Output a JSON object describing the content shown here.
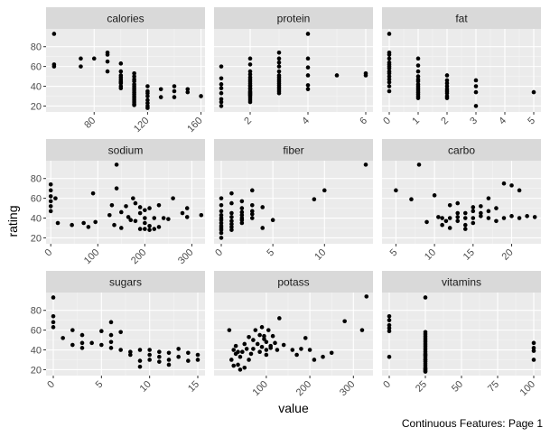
{
  "colors": {
    "panel_background": "#ebebeb",
    "strip_background": "#d9d9d9",
    "grid_major": "#ffffff",
    "grid_minor": "#f5f5f5",
    "point": "#000000"
  },
  "chart_data": {
    "type": "scatter",
    "facet_layout": "3x3 grid",
    "xlabel": "value",
    "ylabel": "rating",
    "caption": "Continuous Features: Page 1",
    "shared_y": {
      "ylim": [
        14,
        98
      ],
      "ticks": [
        20,
        40,
        60,
        80
      ]
    },
    "panels": [
      {
        "name": "calories",
        "xlim": [
          44,
          163
        ],
        "xticks": [
          80,
          120,
          160
        ],
        "yticks": [
          20,
          40,
          60,
          80
        ],
        "x": [
          50,
          50,
          50,
          70,
          70,
          80,
          90,
          90,
          90,
          90,
          100,
          100,
          100,
          100,
          100,
          100,
          100,
          100,
          100,
          100,
          110,
          110,
          110,
          110,
          110,
          110,
          110,
          110,
          110,
          110,
          110,
          110,
          110,
          110,
          110,
          110,
          120,
          120,
          120,
          120,
          120,
          120,
          120,
          120,
          130,
          130,
          140,
          140,
          140,
          150,
          150,
          160
        ],
        "y": [
          93,
          62,
          60,
          68,
          60,
          68,
          74,
          72,
          65,
          55,
          63,
          55,
          51,
          49,
          47,
          45,
          44,
          43,
          40,
          38,
          53,
          50,
          47,
          45,
          42,
          40,
          38,
          36,
          34,
          32,
          30,
          28,
          26,
          24,
          22,
          21,
          40,
          35,
          33,
          30,
          26,
          23,
          20,
          18,
          37,
          29,
          40,
          35,
          29,
          37,
          34,
          30
        ]
      },
      {
        "name": "protein",
        "xlim": [
          0.75,
          6.25
        ],
        "xticks": [
          2,
          4,
          6
        ],
        "yticks": [],
        "x": [
          1,
          1,
          1,
          1,
          1,
          1,
          1,
          1,
          2,
          2,
          2,
          2,
          2,
          2,
          2,
          2,
          2,
          2,
          2,
          2,
          2,
          2,
          2,
          2,
          2,
          2,
          2,
          2,
          2,
          3,
          3,
          3,
          3,
          3,
          3,
          3,
          3,
          3,
          3,
          3,
          3,
          3,
          3,
          3,
          4,
          4,
          4,
          4,
          4,
          4,
          5,
          6,
          6
        ],
        "y": [
          60,
          48,
          42,
          38,
          33,
          27,
          24,
          20,
          68,
          62,
          55,
          52,
          49,
          47,
          45,
          43,
          41,
          40,
          38,
          37,
          35,
          34,
          33,
          32,
          31,
          30,
          28,
          26,
          24,
          74,
          68,
          64,
          60,
          55,
          51,
          49,
          47,
          45,
          43,
          41,
          39,
          37,
          35,
          33,
          93,
          68,
          59,
          51,
          41,
          37,
          51,
          53,
          51
        ]
      },
      {
        "name": "fat",
        "xlim": [
          -0.25,
          5.25
        ],
        "xticks": [
          0,
          1,
          2,
          3,
          4,
          5
        ],
        "yticks": [],
        "x": [
          0,
          0,
          0,
          0,
          0,
          0,
          0,
          0,
          0,
          0,
          0,
          0,
          0,
          0,
          0,
          1,
          1,
          1,
          1,
          1,
          1,
          1,
          1,
          1,
          1,
          1,
          1,
          1,
          1,
          2,
          2,
          2,
          2,
          2,
          2,
          2,
          2,
          2,
          3,
          3,
          3,
          3,
          5
        ],
        "y": [
          93,
          74,
          72,
          68,
          64,
          62,
          60,
          58,
          55,
          53,
          50,
          47,
          44,
          40,
          35,
          68,
          61,
          55,
          50,
          47,
          45,
          42,
          40,
          38,
          36,
          34,
          32,
          30,
          28,
          51,
          46,
          43,
          40,
          37,
          35,
          33,
          30,
          28,
          46,
          40,
          34,
          20,
          34
        ]
      },
      {
        "name": "sodium",
        "xlim": [
          -10,
          328
        ],
        "xticks": [
          0,
          100,
          200,
          300
        ],
        "yticks": [
          20,
          40,
          60,
          80
        ],
        "x": [
          0,
          0,
          0,
          0,
          0,
          0,
          10,
          15,
          45,
          70,
          80,
          90,
          95,
          125,
          130,
          135,
          140,
          140,
          150,
          150,
          160,
          165,
          170,
          175,
          180,
          180,
          190,
          190,
          190,
          200,
          200,
          200,
          200,
          210,
          210,
          210,
          220,
          220,
          230,
          230,
          240,
          250,
          260,
          280,
          290,
          290,
          320
        ],
        "y": [
          74,
          68,
          62,
          57,
          52,
          47,
          60,
          35,
          33,
          35,
          31,
          65,
          36,
          43,
          53,
          33,
          70,
          94,
          30,
          46,
          52,
          41,
          38,
          60,
          55,
          37,
          29,
          45,
          51,
          29,
          35,
          40,
          48,
          28,
          32,
          50,
          29,
          40,
          31,
          53,
          40,
          39,
          60,
          45,
          50,
          41,
          43
        ]
      },
      {
        "name": "fiber",
        "xlim": [
          -0.7,
          14.7
        ],
        "xticks": [
          0,
          5,
          10
        ],
        "yticks": [],
        "x": [
          0,
          0,
          0,
          0,
          0,
          0,
          0,
          0,
          0,
          0,
          0,
          0,
          1,
          1,
          1,
          1,
          1,
          1,
          1,
          1,
          2,
          2,
          2,
          2,
          2,
          2,
          2,
          3,
          3,
          3,
          3,
          3,
          4,
          4,
          5,
          9,
          10,
          14
        ],
        "y": [
          60,
          53,
          47,
          43,
          40,
          38,
          35,
          32,
          30,
          28,
          25,
          20,
          65,
          55,
          45,
          41,
          37,
          34,
          31,
          28,
          57,
          50,
          46,
          43,
          40,
          38,
          35,
          68,
          53,
          47,
          44,
          40,
          51,
          30,
          38,
          59,
          68,
          94
        ]
      },
      {
        "name": "carbo",
        "xlim": [
          3.2,
          23.8
        ],
        "xticks": [
          5,
          10,
          15,
          20
        ],
        "yticks": [],
        "x": [
          5,
          7,
          8,
          9,
          10,
          10.5,
          11,
          11,
          11.5,
          12,
          12,
          12,
          13,
          13,
          13,
          13,
          14,
          14,
          14,
          14,
          15,
          15,
          15,
          15,
          16,
          16,
          16,
          17,
          17,
          17,
          18,
          18,
          19,
          19,
          20,
          20,
          21,
          21,
          22,
          23
        ],
        "y": [
          68,
          59,
          94,
          36,
          63,
          41,
          40,
          33,
          37,
          53,
          40,
          30,
          45,
          41,
          37,
          55,
          45,
          40,
          33,
          29,
          51,
          47,
          40,
          35,
          52,
          45,
          42,
          60,
          47,
          40,
          50,
          37,
          75,
          40,
          73,
          42,
          68,
          40,
          42,
          41
        ]
      },
      {
        "name": "sugars",
        "xlim": [
          -0.75,
          15.75
        ],
        "xticks": [
          0,
          5,
          10,
          15
        ],
        "yticks": [
          20,
          40,
          60,
          80
        ],
        "x": [
          0,
          0,
          0,
          0,
          1,
          2,
          2,
          3,
          3,
          3,
          4,
          5,
          5,
          6,
          6,
          6,
          6,
          7,
          7,
          8,
          8,
          9,
          9,
          9,
          10,
          10,
          10,
          11,
          11,
          11,
          12,
          12,
          12,
          13,
          13,
          14,
          14,
          15,
          15
        ],
        "y": [
          93,
          74,
          68,
          63,
          52,
          60,
          45,
          55,
          47,
          42,
          47,
          45,
          59,
          68,
          55,
          48,
          42,
          58,
          40,
          35,
          38,
          40,
          29,
          23,
          40,
          35,
          30,
          38,
          33,
          28,
          37,
          30,
          25,
          41,
          33,
          37,
          29,
          35,
          30
        ]
      },
      {
        "name": "potass",
        "xlim": [
          -20,
          345
        ],
        "xticks": [
          100,
          200,
          300
        ],
        "yticks": [],
        "x": [
          15,
          20,
          25,
          25,
          30,
          30,
          35,
          35,
          40,
          40,
          45,
          50,
          50,
          55,
          60,
          60,
          65,
          70,
          70,
          75,
          80,
          85,
          85,
          90,
          90,
          95,
          95,
          100,
          100,
          100,
          105,
          110,
          110,
          115,
          120,
          125,
          130,
          140,
          160,
          170,
          180,
          190,
          200,
          210,
          230,
          250,
          280,
          320,
          330
        ],
        "y": [
          60,
          30,
          40,
          24,
          36,
          44,
          25,
          38,
          20,
          33,
          38,
          46,
          22,
          41,
          30,
          53,
          36,
          50,
          41,
          60,
          46,
          55,
          38,
          63,
          43,
          54,
          51,
          48,
          40,
          35,
          60,
          44,
          42,
          54,
          47,
          40,
          72,
          45,
          40,
          35,
          41,
          52,
          40,
          30,
          33,
          37,
          69,
          60,
          94
        ]
      },
      {
        "name": "vitamins",
        "xlim": [
          -5,
          105
        ],
        "xticks": [
          0,
          25,
          50,
          75,
          100
        ],
        "yticks": [],
        "x": [
          0,
          0,
          0,
          0,
          0,
          0,
          25,
          25,
          25,
          25,
          25,
          25,
          25,
          25,
          25,
          25,
          25,
          25,
          25,
          25,
          25,
          25,
          25,
          25,
          25,
          25,
          25,
          25,
          25,
          25,
          25,
          25,
          100,
          100,
          100,
          100
        ],
        "y": [
          74,
          70,
          65,
          62,
          59,
          33,
          93,
          58,
          56,
          54,
          52,
          50,
          48,
          46,
          44,
          42,
          40,
          38,
          36,
          34,
          32,
          30,
          28,
          26,
          24,
          22,
          21,
          20,
          19,
          18,
          35,
          30,
          47,
          42,
          39,
          30
        ]
      }
    ]
  }
}
